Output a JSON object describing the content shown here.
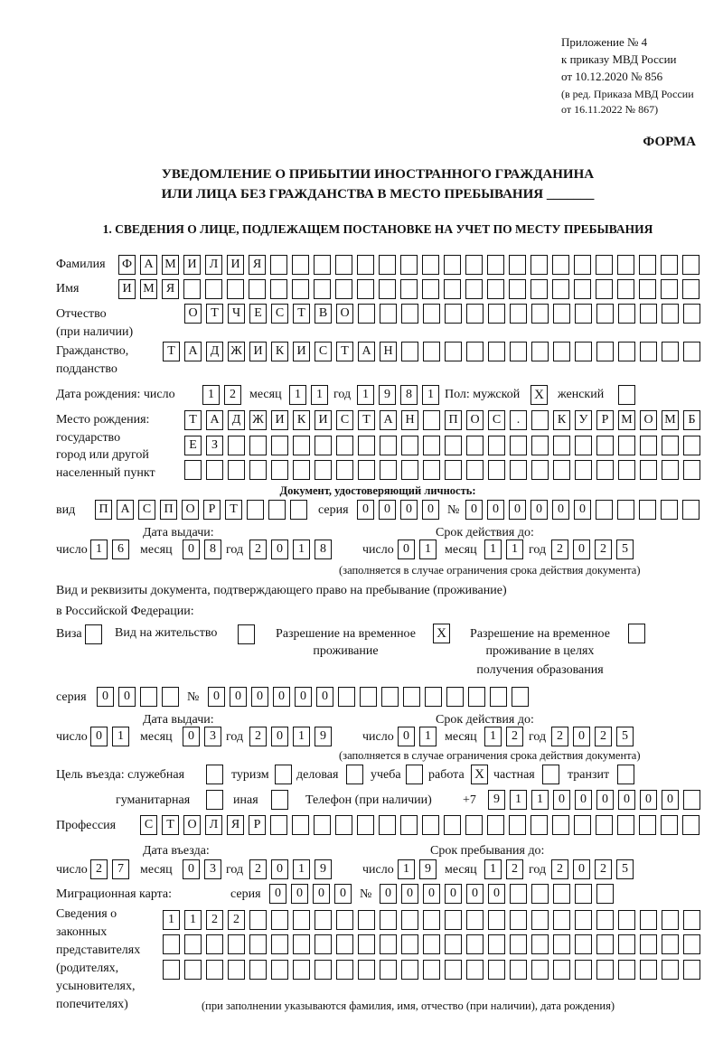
{
  "header": {
    "appendix": "Приложение № 4",
    "order": "к приказу МВД России",
    "order_date": "от 10.12.2020 № 856",
    "edition1": "(в ред. Приказа МВД России",
    "edition2": "от 16.11.2022 № 867)",
    "form_label": "ФОРМА",
    "title1": "УВЕДОМЛЕНИЕ О ПРИБЫТИИ ИНОСТРАННОГО ГРАЖДАНИНА",
    "title2": "ИЛИ ЛИЦА БЕЗ ГРАЖДАНСТВА В МЕСТО ПРЕБЫВАНИЯ _______",
    "section1": "1. СВЕДЕНИЯ О ЛИЦЕ, ПОДЛЕЖАЩЕМ ПОСТАНОВКЕ НА УЧЕТ ПО МЕСТУ ПРЕБЫВАНИЯ"
  },
  "labels": {
    "surname": "Фамилия",
    "name": "Имя",
    "patronymic": "Отчество",
    "patronymic_note": "(при наличии)",
    "citizenship1": "Гражданство,",
    "citizenship2": "подданство",
    "birth_date": "Дата рождения:   число",
    "day": "число",
    "month": "месяц",
    "year": "год",
    "sex": "Пол: мужской",
    "female": "женский",
    "birth_place1": "Место рождения:",
    "birth_place2": "государство",
    "birth_place3": "город или другой",
    "birth_place4": "населенный пункт",
    "id_doc": "Документ, удостоверяющий личность:",
    "kind": "вид",
    "series": "серия",
    "number": "№",
    "issue_date": "Дата выдачи:",
    "valid_until": "Срок действия до:",
    "validity_note": "(заполняется в случае ограничения срока действия документа)",
    "stay_doc1": "Вид и реквизиты документа, подтверждающего право на пребывание (проживание)",
    "stay_doc2": "в Российской Федерации:",
    "visa": "Виза",
    "residence": "Вид на жительство",
    "trp1": "Разрешение на временное",
    "trp2": "проживание",
    "trpe1": "Разрешение на временное",
    "trpe2": "проживание в целях",
    "trpe3": "получения образования",
    "purpose": "Цель въезда: служебная",
    "tourism": "туризм",
    "business": "деловая",
    "study": "учеба",
    "work": "работа",
    "private": "частная",
    "transit": "транзит",
    "humanitarian": "гуманитарная",
    "other": "иная",
    "phone": "Телефон (при наличии)",
    "phone_prefix": "+7",
    "profession": "Профессия",
    "entry_date": "Дата въезда:",
    "stay_until": "Срок пребывания до:",
    "migration_card": "Миграционная карта:",
    "reps1": "Сведения о",
    "reps2": "законных",
    "reps3": "представителях",
    "reps4": "(родителях,",
    "reps5": "усыновителях,",
    "reps6": "попечителях)",
    "reps_note": "(при заполнении указываются фамилия, имя, отчество (при наличии), дата рождения)"
  },
  "person": {
    "surname": "ФАМИЛИЯ",
    "name": "ИМЯ",
    "patronymic": "ОТЧЕСТВО",
    "citizenship": "ТАДЖИКИСТАН",
    "birth_day": "12",
    "birth_month": "11",
    "birth_year": "1981",
    "sex_male": "X",
    "sex_female": "",
    "birth_place_line1": "ТАДЖИКИСТАН ПОС. КУРМОМБ",
    "birth_place_line2": "ЕЗ",
    "birth_place_line3": ""
  },
  "id_document": {
    "kind": "ПАСПОРТ",
    "series": "0000",
    "number": "000000",
    "issue_day": "16",
    "issue_month": "08",
    "issue_year": "2018",
    "valid_day": "01",
    "valid_month": "11",
    "valid_year": "2025"
  },
  "stay_document": {
    "visa": "",
    "residence_permit": "",
    "temporary_residence": "X",
    "temporary_residence_education": "",
    "series": "00",
    "number": "000000",
    "issue_day": "01",
    "issue_month": "03",
    "issue_year": "2019",
    "valid_day": "01",
    "valid_month": "12",
    "valid_year": "2025"
  },
  "purpose": {
    "official": "",
    "tourism": "",
    "business": "",
    "study": "",
    "work": "X",
    "private": "",
    "transit": "",
    "humanitarian": "",
    "other": ""
  },
  "phone": "911000000",
  "profession": "СТОЛЯР",
  "entry": {
    "day": "27",
    "month": "03",
    "year": "2019"
  },
  "stay_until": {
    "day": "19",
    "month": "12",
    "year": "2025"
  },
  "migration_card": {
    "series": "0000",
    "number": "000000"
  },
  "representatives": {
    "line1": "1122",
    "line2": "",
    "line3": ""
  }
}
